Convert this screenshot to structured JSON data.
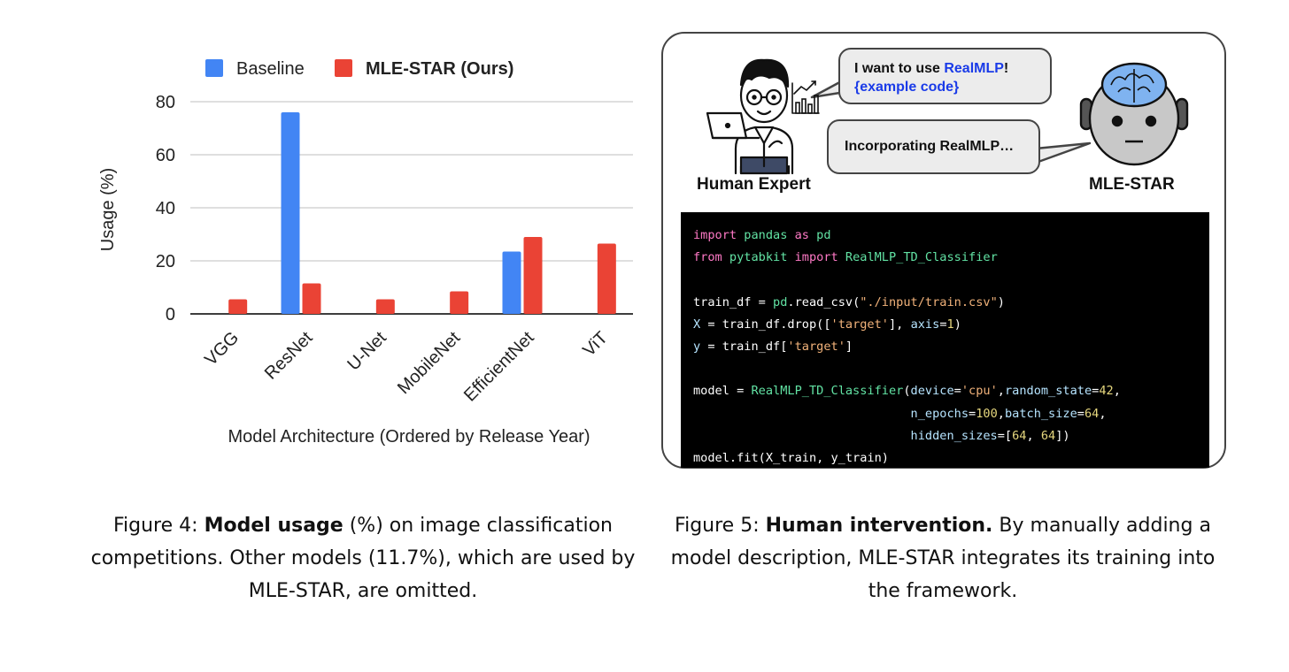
{
  "figure4": {
    "caption_prefix": "Figure 4:",
    "caption_bold": "Model usage",
    "caption_rest": "(%) on image classification competitions. Other models (11.7%), which are used by MLE-STAR, are omitted."
  },
  "figure5": {
    "caption_prefix": "Figure 5:",
    "caption_bold": "Human intervention.",
    "caption_rest": "By manually adding a model description, MLE-STAR integrates its training into the framework.",
    "bubble_human": {
      "text": "I want to use ",
      "highlight": "RealMLP",
      "suffix": "!",
      "line2": "{example code}"
    },
    "bubble_agent": "Incorporating RealMLP…",
    "human_label": "Human Expert",
    "agent_label": "MLE-STAR",
    "code_lines": [
      [
        {
          "t": "import",
          "c": "kw"
        },
        {
          "t": " pandas ",
          "c": "fn"
        },
        {
          "t": "as",
          "c": "kw"
        },
        {
          "t": " pd",
          "c": "fn"
        }
      ],
      [
        {
          "t": "from",
          "c": "kw"
        },
        {
          "t": " pytabkit ",
          "c": "fn"
        },
        {
          "t": "import",
          "c": "kw"
        },
        {
          "t": " RealMLP_TD_Classifier",
          "c": "fn"
        }
      ],
      [],
      [
        {
          "t": "train_df = ",
          "c": "pl"
        },
        {
          "t": "pd",
          "c": "fn"
        },
        {
          "t": ".read_csv(",
          "c": "pl"
        },
        {
          "t": "\"./input/train.csv\"",
          "c": "st"
        },
        {
          "t": ")",
          "c": "pl"
        }
      ],
      [
        {
          "t": "X",
          "c": "ar"
        },
        {
          "t": " = train_df.drop([",
          "c": "pl"
        },
        {
          "t": "'target'",
          "c": "st"
        },
        {
          "t": "], ",
          "c": "pl"
        },
        {
          "t": "axis",
          "c": "ar"
        },
        {
          "t": "=",
          "c": "pl"
        },
        {
          "t": "1",
          "c": "nu"
        },
        {
          "t": ")",
          "c": "pl"
        }
      ],
      [
        {
          "t": "y",
          "c": "ar"
        },
        {
          "t": " = train_df[",
          "c": "pl"
        },
        {
          "t": "'target'",
          "c": "st"
        },
        {
          "t": "]",
          "c": "pl"
        }
      ],
      [],
      [
        {
          "t": "model = ",
          "c": "pl"
        },
        {
          "t": "RealMLP_TD_Classifier",
          "c": "fn"
        },
        {
          "t": "(",
          "c": "pl"
        },
        {
          "t": "device",
          "c": "ar"
        },
        {
          "t": "=",
          "c": "pl"
        },
        {
          "t": "'cpu'",
          "c": "st"
        },
        {
          "t": ",",
          "c": "pl"
        },
        {
          "t": "random_state",
          "c": "ar"
        },
        {
          "t": "=",
          "c": "pl"
        },
        {
          "t": "42",
          "c": "nu"
        },
        {
          "t": ",",
          "c": "pl"
        }
      ],
      [
        {
          "t": "                              ",
          "c": "pl"
        },
        {
          "t": "n_epochs",
          "c": "ar"
        },
        {
          "t": "=",
          "c": "pl"
        },
        {
          "t": "100",
          "c": "nu"
        },
        {
          "t": ",",
          "c": "pl"
        },
        {
          "t": "batch_size",
          "c": "ar"
        },
        {
          "t": "=",
          "c": "pl"
        },
        {
          "t": "64",
          "c": "nu"
        },
        {
          "t": ",",
          "c": "pl"
        }
      ],
      [
        {
          "t": "                              ",
          "c": "pl"
        },
        {
          "t": "hidden_sizes",
          "c": "ar"
        },
        {
          "t": "=[",
          "c": "pl"
        },
        {
          "t": "64",
          "c": "nu"
        },
        {
          "t": ", ",
          "c": "pl"
        },
        {
          "t": "64",
          "c": "nu"
        },
        {
          "t": "])",
          "c": "pl"
        }
      ],
      [
        {
          "t": "model.fit(X_train, y_train)",
          "c": "pl"
        }
      ]
    ]
  },
  "chart_data": {
    "type": "bar",
    "categories": [
      "VGG",
      "ResNet",
      "U-Net",
      "MobileNet",
      "EfficientNet",
      "ViT"
    ],
    "series": [
      {
        "name": "Baseline",
        "color": "#4285f4",
        "values": [
          0,
          76,
          0,
          0,
          23.5,
          0
        ]
      },
      {
        "name": "MLE-STAR (Ours)",
        "color": "#ea4335",
        "values": [
          5.5,
          11.5,
          5.5,
          8.5,
          29,
          26.5
        ]
      }
    ],
    "title": "",
    "xlabel": "Model Architecture (Ordered by Release Year)",
    "ylabel": "Usage (%)",
    "ylim": [
      0,
      80
    ],
    "yticks": [
      0,
      20,
      40,
      60,
      80
    ],
    "grid": true,
    "legend": "top"
  }
}
